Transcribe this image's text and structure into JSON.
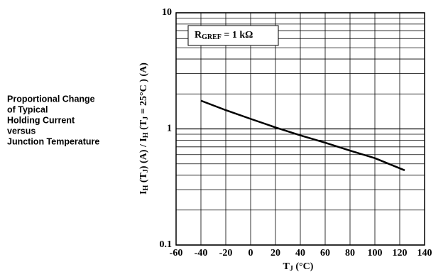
{
  "caption": [
    "Proportional Change",
    "of Typical",
    "Holding Current",
    "versus",
    "Junction Temperature"
  ],
  "chart_data": {
    "type": "line",
    "ylabel": [
      {
        "text": "I"
      },
      {
        "text": "H",
        "sub": true
      },
      {
        "text": " (T"
      },
      {
        "text": "J",
        "sub": true
      },
      {
        "text": ") (A) / I"
      },
      {
        "text": "H",
        "sub": true
      },
      {
        "text": " (T"
      },
      {
        "text": "J",
        "sub": true
      },
      {
        "text": " = 25°C ) (A)"
      }
    ],
    "xlabel": [
      {
        "text": "T"
      },
      {
        "text": "J",
        "sub": true
      },
      {
        "text": " (°C)"
      }
    ],
    "annotation": [
      {
        "text": "R"
      },
      {
        "text": "GREF",
        "sub": true
      },
      {
        "text": " = 1 kΩ"
      }
    ],
    "x": [
      -40,
      -20,
      0,
      20,
      40,
      60,
      80,
      100,
      124
    ],
    "values": [
      1.75,
      1.45,
      1.22,
      1.03,
      0.88,
      0.76,
      0.65,
      0.56,
      0.44
    ],
    "color": "#000000",
    "xlim": [
      -60,
      140
    ],
    "xticks": [
      -60,
      -40,
      -20,
      0,
      20,
      40,
      60,
      80,
      100,
      120,
      140
    ],
    "ylim": [
      0.1,
      10
    ],
    "yticks": [
      0.1,
      1,
      10
    ],
    "yminor": [
      0.2,
      0.3,
      0.4,
      0.5,
      0.6,
      0.7,
      0.8,
      0.9,
      2,
      3,
      4,
      5,
      6,
      7,
      8,
      9
    ],
    "log_y": true,
    "grid": true
  }
}
